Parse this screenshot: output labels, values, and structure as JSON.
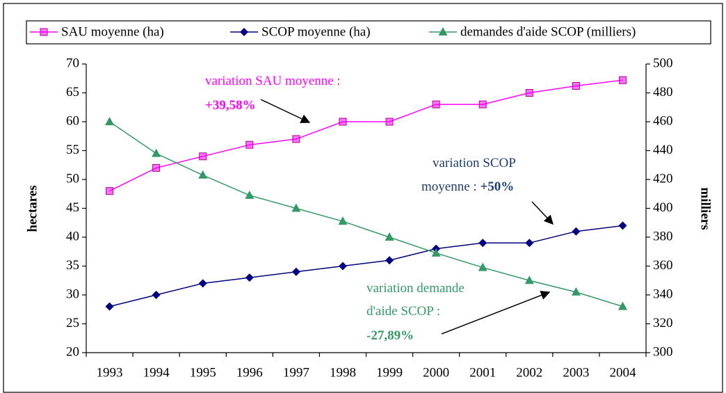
{
  "chart_data": {
    "type": "line",
    "categories": [
      "1993",
      "1994",
      "1995",
      "1996",
      "1997",
      "1998",
      "1999",
      "2000",
      "2001",
      "2002",
      "2003",
      "2004"
    ],
    "series": [
      {
        "name": "SAU moyenne (ha)",
        "color": "#ff00ff",
        "marker": "square",
        "values": [
          48,
          52,
          54,
          56,
          57,
          60,
          60,
          63,
          63,
          65,
          66.2,
          67.2
        ]
      },
      {
        "name": "SCOP moyenne (ha)",
        "color": "#000080",
        "marker": "diamond",
        "values": [
          28,
          30,
          32,
          33,
          34,
          35,
          36,
          38,
          39,
          39,
          41,
          42
        ]
      },
      {
        "name": "demandes d'aide SCOP (milliers)",
        "color": "#339966",
        "marker": "triangle",
        "axis": "y2",
        "values": [
          460,
          438,
          423,
          409,
          400,
          391,
          380,
          369,
          359,
          350,
          342,
          332
        ]
      }
    ],
    "ylabel": "hectares",
    "y2label": "milliers",
    "ylim": [
      20,
      70
    ],
    "yticks": [
      20,
      25,
      30,
      35,
      40,
      45,
      50,
      55,
      60,
      65,
      70
    ],
    "y2lim": [
      300,
      500
    ],
    "y2ticks": [
      300,
      320,
      340,
      360,
      380,
      400,
      420,
      440,
      460,
      480,
      500
    ],
    "annotations": [
      {
        "color": "#ff00ff",
        "lines": [
          [
            {
              "text": "variation SAU moyenne :",
              "bold": false
            }
          ],
          [
            {
              "text": "+39,58%",
              "bold": true
            }
          ]
        ]
      },
      {
        "color": "#1f3d6b",
        "lines": [
          [
            {
              "text": "variation SCOP",
              "bold": false
            }
          ],
          [
            {
              "text": "moyenne : ",
              "bold": false
            },
            {
              "text": "+50%",
              "bold": true
            }
          ]
        ]
      },
      {
        "color": "#339966",
        "lines": [
          [
            {
              "text": "variation demande",
              "bold": false
            }
          ],
          [
            {
              "text": "d'aide SCOP :",
              "bold": false
            }
          ],
          [
            {
              "text": "-27,89%",
              "bold": true
            }
          ]
        ]
      }
    ]
  }
}
